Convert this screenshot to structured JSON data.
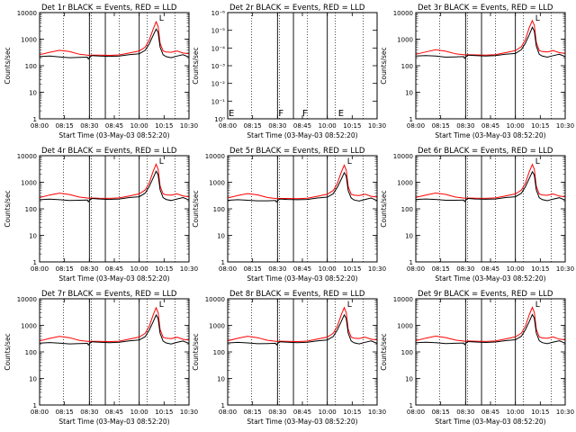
{
  "chart_data": {
    "type": "line",
    "suptitle_suffix": "BLACK = Events, RED = LLD",
    "xlabel": "Start Time (03-May-03 08:52:20)",
    "ylabel": "Counts/sec",
    "x_ticks": [
      "08:00",
      "08:15",
      "08:30",
      "08:45",
      "10:00",
      "10:15",
      "10:30"
    ],
    "x_range_min": [
      0,
      150
    ],
    "y_scale": "log",
    "y_ticks_main": [
      "1",
      "10",
      "100",
      "1000",
      "10000"
    ],
    "y_ticks_small": [
      "10⁰",
      "10⁻¹",
      "10⁻²",
      "10⁻³",
      "10⁻⁴",
      "10⁻⁵",
      "10⁻⁶"
    ],
    "dotted_lines_min": [
      24,
      52,
      80,
      108,
      136
    ],
    "solid_lines_min": [
      50,
      66,
      100
    ],
    "markers": [
      {
        "label": "E",
        "x": 0
      },
      {
        "label": "F",
        "x": 50
      },
      {
        "label": "F",
        "x": 74
      },
      {
        "label": "E",
        "x": 110
      },
      {
        "label": "L",
        "x": 120
      }
    ],
    "series_colors": {
      "events": "#000000",
      "lld": "#ff0000"
    },
    "time_min": [
      0,
      10,
      20,
      30,
      40,
      48,
      49,
      52,
      60,
      70,
      80,
      90,
      100,
      106,
      110,
      114,
      117,
      119,
      121,
      124,
      127,
      132,
      138,
      144,
      150
    ],
    "panels": [
      {
        "title": "Det 1r",
        "has_data": true,
        "events": [
          220,
          230,
          215,
          200,
          205,
          210,
          180,
          240,
          230,
          225,
          230,
          260,
          280,
          380,
          650,
          1400,
          2400,
          1800,
          500,
          260,
          220,
          200,
          230,
          260,
          210
        ],
        "lld": [
          260,
          320,
          380,
          340,
          270,
          250,
          245,
          250,
          250,
          245,
          255,
          300,
          360,
          500,
          900,
          2400,
          4500,
          3000,
          700,
          360,
          330,
          320,
          360,
          300,
          280
        ]
      },
      {
        "title": "Det 2r",
        "has_data": false,
        "events": [],
        "lld": []
      },
      {
        "title": "Det 3r",
        "has_data": true,
        "events": [
          230,
          240,
          230,
          210,
          215,
          220,
          190,
          250,
          240,
          230,
          240,
          270,
          290,
          400,
          700,
          1500,
          2800,
          2000,
          550,
          270,
          230,
          210,
          240,
          270,
          220
        ],
        "lld": [
          270,
          330,
          400,
          350,
          280,
          260,
          255,
          260,
          255,
          250,
          260,
          310,
          370,
          520,
          950,
          2800,
          5000,
          3300,
          750,
          370,
          340,
          330,
          370,
          310,
          290
        ]
      },
      {
        "title": "Det 4r",
        "has_data": true,
        "events": [
          220,
          230,
          220,
          205,
          210,
          215,
          185,
          245,
          235,
          225,
          235,
          265,
          285,
          390,
          680,
          1450,
          2600,
          1900,
          520,
          265,
          225,
          205,
          235,
          265,
          215
        ],
        "lld": [
          265,
          330,
          390,
          345,
          275,
          255,
          250,
          255,
          250,
          248,
          258,
          305,
          365,
          510,
          920,
          2600,
          4800,
          3100,
          720,
          365,
          335,
          325,
          365,
          305,
          285
        ]
      },
      {
        "title": "Det 5r",
        "has_data": true,
        "events": [
          210,
          220,
          210,
          200,
          200,
          205,
          180,
          235,
          225,
          220,
          225,
          255,
          275,
          370,
          640,
          1300,
          2300,
          1700,
          480,
          255,
          215,
          195,
          225,
          255,
          205
        ],
        "lld": [
          255,
          315,
          375,
          335,
          265,
          245,
          240,
          245,
          245,
          240,
          250,
          295,
          355,
          490,
          880,
          2400,
          4400,
          2900,
          690,
          355,
          325,
          315,
          355,
          295,
          275
        ]
      },
      {
        "title": "Det 6r",
        "has_data": true,
        "events": [
          225,
          235,
          225,
          210,
          210,
          215,
          190,
          245,
          235,
          228,
          235,
          265,
          285,
          385,
          670,
          1420,
          2500,
          1850,
          510,
          262,
          222,
          202,
          232,
          262,
          212
        ],
        "lld": [
          268,
          328,
          392,
          348,
          276,
          256,
          250,
          256,
          252,
          247,
          257,
          306,
          366,
          505,
          910,
          2550,
          4700,
          3050,
          710,
          362,
          332,
          322,
          362,
          302,
          282
        ]
      },
      {
        "title": "Det 7r",
        "has_data": true,
        "events": [
          215,
          225,
          215,
          200,
          205,
          210,
          182,
          240,
          230,
          223,
          230,
          260,
          280,
          375,
          650,
          1380,
          2450,
          1800,
          500,
          258,
          218,
          198,
          228,
          258,
          208
        ],
        "lld": [
          260,
          322,
          385,
          342,
          272,
          252,
          247,
          252,
          249,
          244,
          254,
          302,
          362,
          500,
          900,
          2500,
          4600,
          3000,
          700,
          358,
          328,
          318,
          358,
          298,
          278
        ]
      },
      {
        "title": "Det 8r",
        "has_data": true,
        "events": [
          218,
          228,
          218,
          203,
          207,
          212,
          184,
          242,
          232,
          224,
          232,
          262,
          282,
          380,
          660,
          1400,
          2480,
          1820,
          505,
          260,
          220,
          200,
          230,
          260,
          210
        ],
        "lld": [
          262,
          325,
          388,
          344,
          273,
          253,
          248,
          253,
          250,
          245,
          255,
          303,
          363,
          502,
          905,
          2520,
          4650,
          3020,
          705,
          360,
          330,
          320,
          360,
          300,
          280
        ]
      },
      {
        "title": "Det 9r",
        "has_data": true,
        "events": [
          222,
          232,
          222,
          207,
          211,
          216,
          188,
          246,
          236,
          227,
          236,
          266,
          286,
          388,
          675,
          1430,
          2550,
          1870,
          515,
          264,
          224,
          204,
          234,
          264,
          214
        ],
        "lld": [
          266,
          329,
          393,
          347,
          277,
          257,
          251,
          257,
          253,
          248,
          258,
          307,
          367,
          507,
          915,
          2580,
          4750,
          3080,
          715,
          364,
          334,
          324,
          364,
          304,
          284
        ]
      }
    ]
  }
}
